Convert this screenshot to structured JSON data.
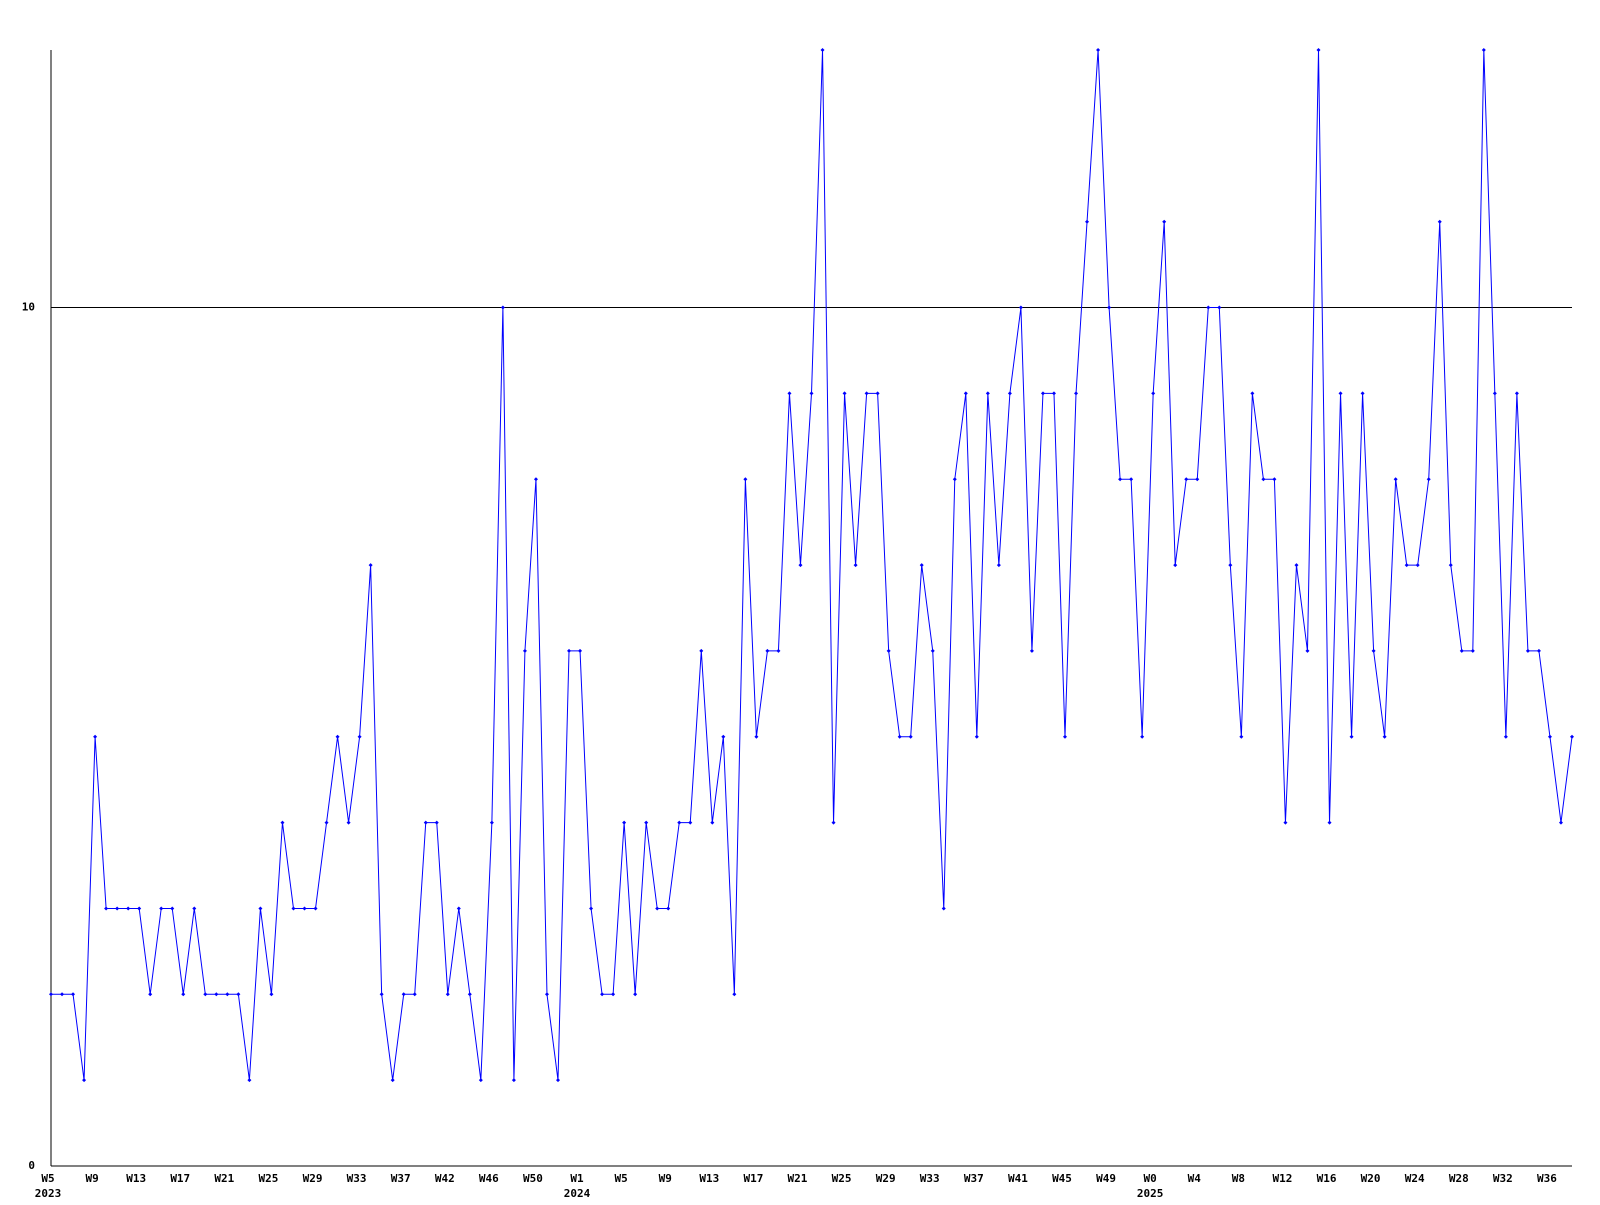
{
  "chart_data": {
    "type": "line",
    "categories": [
      "W5",
      null,
      null,
      null,
      "W9",
      null,
      null,
      null,
      "W13",
      null,
      null,
      null,
      "W17",
      null,
      null,
      null,
      "W21",
      null,
      null,
      null,
      "W25",
      null,
      null,
      null,
      "W29",
      null,
      null,
      null,
      "W33",
      null,
      null,
      null,
      "W37",
      null,
      null,
      null,
      "W42",
      null,
      null,
      null,
      "W46",
      null,
      null,
      null,
      "W50",
      null,
      null,
      null,
      "W1",
      null,
      null,
      null,
      "W5",
      null,
      null,
      null,
      "W9",
      null,
      null,
      null,
      "W13",
      null,
      null,
      null,
      "W17",
      null,
      null,
      null,
      "W21",
      null,
      null,
      null,
      "W25",
      null,
      null,
      null,
      "W29",
      null,
      null,
      null,
      "W33",
      null,
      null,
      null,
      "W37",
      null,
      null,
      null,
      "W41",
      null,
      null,
      null,
      "W45",
      null,
      null,
      null,
      "W49",
      null,
      null,
      null,
      "W0",
      null,
      null,
      null,
      "W4",
      null,
      null,
      null,
      "W8",
      null,
      null,
      null,
      "W12",
      null,
      null,
      null,
      "W16",
      null,
      null,
      null,
      "W20",
      null,
      null,
      null,
      "W24",
      null,
      null,
      null,
      "W28",
      null,
      null,
      null,
      "W32",
      null,
      null,
      null,
      "W36",
      null,
      null
    ],
    "years": [
      "2023",
      null,
      null,
      null,
      null,
      null,
      null,
      null,
      null,
      null,
      null,
      null,
      null,
      null,
      null,
      null,
      null,
      null,
      null,
      null,
      null,
      null,
      null,
      null,
      null,
      null,
      null,
      null,
      null,
      null,
      null,
      null,
      null,
      null,
      null,
      null,
      null,
      null,
      null,
      null,
      null,
      null,
      null,
      null,
      null,
      null,
      null,
      null,
      "2024",
      null,
      null,
      null,
      null,
      null,
      null,
      null,
      null,
      null,
      null,
      null,
      null,
      null,
      null,
      null,
      null,
      null,
      null,
      null,
      null,
      null,
      null,
      null,
      null,
      null,
      null,
      null,
      null,
      null,
      null,
      null,
      null,
      null,
      null,
      null,
      null,
      null,
      null,
      null,
      null,
      null,
      null,
      null,
      null,
      null,
      null,
      null,
      null,
      null,
      null,
      null,
      "2025",
      null,
      null,
      null,
      null,
      null,
      null,
      null,
      null,
      null,
      null,
      null,
      null,
      null,
      null,
      null,
      null,
      null,
      null,
      null,
      null,
      null,
      null,
      null,
      null,
      null,
      null,
      null,
      null,
      null,
      null,
      null,
      null,
      null,
      null,
      null,
      null,
      null,
      null
    ],
    "series": [
      {
        "color": "#0000ff",
        "values": [
          2,
          2,
          2,
          1,
          5,
          3,
          3,
          3,
          3,
          2,
          3,
          3,
          2,
          3,
          2,
          2,
          2,
          2,
          1,
          3,
          2,
          4,
          3,
          3,
          3,
          4,
          5,
          4,
          5,
          7,
          2,
          1,
          2,
          2,
          4,
          4,
          2,
          3,
          2,
          1,
          4,
          10,
          1,
          6,
          8,
          2,
          1,
          6,
          6,
          3,
          2,
          2,
          4,
          2,
          4,
          3,
          3,
          4,
          4,
          6,
          4,
          5,
          2,
          8,
          5,
          6,
          6,
          9,
          7,
          9,
          13,
          4,
          9,
          7,
          9,
          9,
          6,
          5,
          5,
          7,
          6,
          3,
          8,
          9,
          5,
          9,
          7,
          9,
          10,
          6,
          9,
          9,
          5,
          9,
          11,
          13,
          10,
          8,
          8,
          5,
          9,
          11,
          7,
          8,
          8,
          10,
          10,
          7,
          5,
          9,
          8,
          8,
          4,
          7,
          6,
          13,
          4,
          9,
          5,
          9,
          6,
          5,
          8,
          7,
          7,
          8,
          11,
          7,
          6,
          6,
          13,
          9,
          5,
          9,
          6,
          6,
          5,
          4,
          5
        ]
      }
    ],
    "ylim": [
      0,
      13
    ],
    "yticks": [
      0,
      10
    ],
    "grid": true
  }
}
